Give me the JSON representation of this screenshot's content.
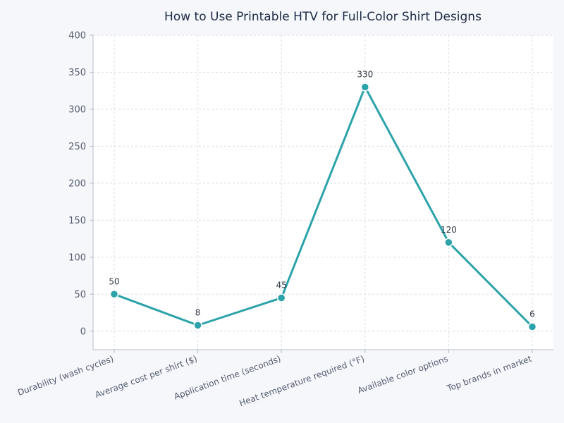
{
  "chart_data": {
    "type": "line",
    "title": "How to Use Printable HTV for Full-Color Shirt Designs",
    "xlabel": "",
    "ylabel": "",
    "categories": [
      "Durability (wash cycles)",
      "Average cost per shirt ($)",
      "Application time (seconds)",
      "Heat temperature required (°F)",
      "Available color options",
      "Top brands in market"
    ],
    "series": [
      {
        "values": [
          50,
          8,
          45,
          330,
          120,
          6
        ]
      }
    ],
    "ylim": [
      -25,
      400
    ],
    "yticks": [
      0,
      50,
      100,
      150,
      200,
      250,
      300,
      350,
      400
    ],
    "grid": true,
    "line_color": "#2ca3aa",
    "marker_edge_color": "#ffffff",
    "background": "#f5f7fb",
    "plot_background": "#ffffff"
  }
}
